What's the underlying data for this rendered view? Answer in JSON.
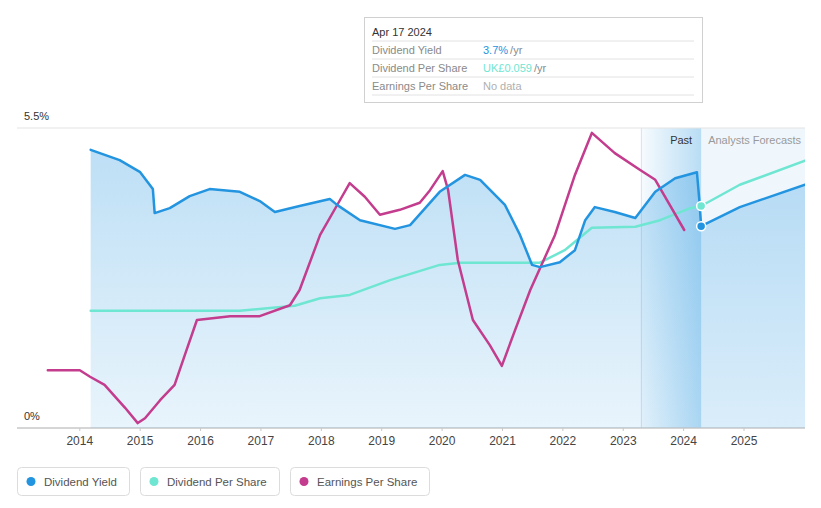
{
  "chart_data": {
    "type": "line",
    "xlim": [
      2012.96,
      2026.01
    ],
    "xticks": [
      2014,
      2015,
      2016,
      2017,
      2018,
      2019,
      2020,
      2021,
      2022,
      2023,
      2024,
      2025
    ],
    "ylim": [
      0,
      5.5
    ],
    "yticks": [
      {
        "value": 0,
        "label": "0%"
      },
      {
        "value": 5.5,
        "label": "5.5%"
      }
    ],
    "grid": true,
    "legend": "bottom-left",
    "series": [
      {
        "name": "Dividend Yield",
        "color": "#2394df",
        "type": "area",
        "x": [
          2014.18,
          2014.66,
          2015.0,
          2015.21,
          2015.24,
          2015.49,
          2015.82,
          2016.15,
          2016.65,
          2016.98,
          2017.23,
          2017.64,
          2018.14,
          2018.26,
          2018.64,
          2019.22,
          2019.47,
          2019.96,
          2020.38,
          2020.63,
          2021.04,
          2021.29,
          2021.49,
          2021.62,
          2021.95,
          2022.2,
          2022.37,
          2022.53,
          2022.86,
          2023.2,
          2023.53,
          2023.86,
          2024.22,
          2024.26,
          2024.29,
          2024.93,
          2026.01
        ],
        "values": [
          5.1,
          4.91,
          4.69,
          4.38,
          3.94,
          4.03,
          4.25,
          4.38,
          4.33,
          4.16,
          3.96,
          4.07,
          4.2,
          4.09,
          3.81,
          3.65,
          3.72,
          4.33,
          4.64,
          4.55,
          4.09,
          3.54,
          2.99,
          2.95,
          3.04,
          3.26,
          3.81,
          4.05,
          3.96,
          3.85,
          4.33,
          4.58,
          4.69,
          4.18,
          3.7,
          4.05,
          4.46
        ]
      },
      {
        "name": "Dividend Per Share",
        "color": "#6fe6d2",
        "type": "line",
        "x": [
          2014.18,
          2016.65,
          2017.15,
          2017.56,
          2017.98,
          2018.47,
          2019.14,
          2019.96,
          2020.3,
          2021.62,
          2022.03,
          2022.48,
          2023.2,
          2023.61,
          2024.11,
          2024.29,
          2024.93,
          2026.01
        ],
        "values": [
          2.15,
          2.15,
          2.2,
          2.24,
          2.38,
          2.44,
          2.71,
          2.99,
          3.03,
          3.03,
          3.26,
          3.67,
          3.69,
          3.81,
          4.03,
          4.07,
          4.46,
          4.9
        ]
      },
      {
        "name": "Earnings Per Share",
        "color": "#c33c8d",
        "type": "line",
        "x": [
          2013.47,
          2014.0,
          2014.17,
          2014.41,
          2014.75,
          2014.96,
          2015.08,
          2015.33,
          2015.57,
          2015.74,
          2015.94,
          2016.49,
          2016.98,
          2017.48,
          2017.64,
          2017.98,
          2018.31,
          2018.47,
          2018.72,
          2018.97,
          2019.3,
          2019.63,
          2019.8,
          2020.01,
          2020.1,
          2020.26,
          2020.51,
          2020.79,
          2020.99,
          2021.21,
          2021.46,
          2021.87,
          2022.2,
          2022.48,
          2022.86,
          2023.28,
          2023.53,
          2023.77,
          2024.01
        ],
        "values": [
          1.06,
          1.06,
          0.94,
          0.79,
          0.37,
          0.09,
          0.18,
          0.51,
          0.79,
          1.34,
          1.98,
          2.05,
          2.05,
          2.25,
          2.53,
          3.54,
          4.18,
          4.49,
          4.24,
          3.91,
          4.0,
          4.13,
          4.36,
          4.71,
          4.36,
          3.08,
          1.98,
          1.52,
          1.14,
          1.8,
          2.53,
          3.54,
          4.64,
          5.41,
          5.04,
          4.73,
          4.55,
          4.09,
          3.63
        ]
      }
    ],
    "annotations": [
      {
        "text": "Past",
        "x": [
          2023.3,
          2024.29
        ]
      },
      {
        "text": "Analysts Forecasts",
        "x": [
          2024.29,
          2026.01
        ]
      }
    ],
    "tooltip": {
      "title": "Apr 17 2024",
      "x": 2024.29,
      "rows": [
        {
          "label": "Dividend Yield",
          "value": "3.7%",
          "unit": "/yr"
        },
        {
          "label": "Dividend Per Share",
          "value": "UK£0.059",
          "unit": "/yr"
        },
        {
          "label": "Earnings Per Share",
          "value": "No data"
        }
      ]
    }
  }
}
